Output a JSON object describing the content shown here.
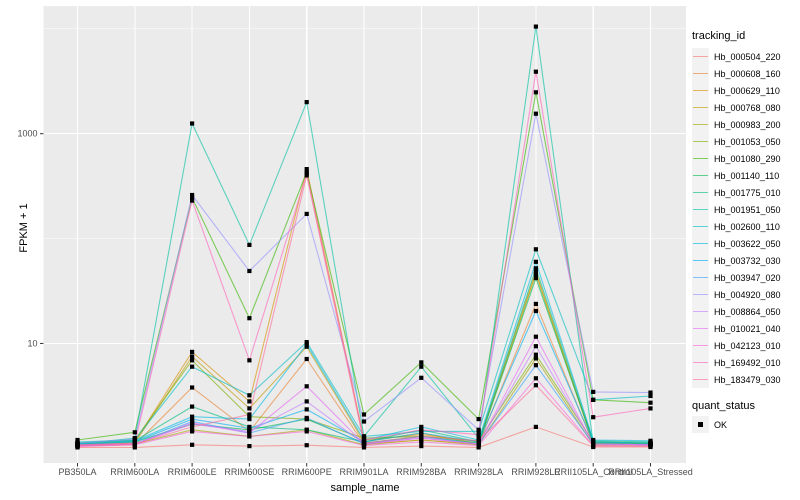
{
  "chart_data": {
    "type": "line",
    "title": "",
    "xlabel": "sample_name",
    "ylabel": "FPKM + 1",
    "y_scale": "log10",
    "ylim": [
      1,
      15000
    ],
    "grid": true,
    "legend_position": "right",
    "panel_bg": "#EBEBEB",
    "grid_color": "#FFFFFF",
    "tick_label_color": "#4D4D4D",
    "tick_mark_color": "#333333",
    "point_color": "#000000",
    "legend_key_bg": "#F2F2F2",
    "yticks": [
      {
        "value": 10,
        "label": "10"
      },
      {
        "value": 1000,
        "label": "1000"
      }
    ],
    "y_minor": [
      100,
      10000
    ],
    "categories": [
      "PB350LA",
      "RRIM600LA",
      "RRIM600LE",
      "RRIM600SE",
      "RRIM600PE",
      "RRIM901LA",
      "RRIM928BA",
      "RRIM928LA",
      "RRIM928LE",
      "RRII105LA_Control",
      "RRII105LA_Stressed"
    ],
    "legend": {
      "color_title": "tracking_id",
      "shape_title": "quant_status",
      "shape_items": [
        {
          "label": "OK"
        }
      ]
    },
    "series": [
      {
        "name": "Hb_000504_220",
        "color": "#F8766D",
        "values": [
          1.02,
          1.02,
          1.08,
          1.05,
          1.07,
          1.02,
          1.05,
          1.02,
          1.6,
          1.03,
          1.03
        ]
      },
      {
        "name": "Hb_000608_160",
        "color": "#EA8331",
        "values": [
          1.05,
          1.08,
          3.8,
          1.45,
          7.1,
          1.1,
          1.2,
          1.1,
          23.8,
          1.1,
          1.1
        ]
      },
      {
        "name": "Hb_000629_110",
        "color": "#D89000",
        "values": [
          1.1,
          1.15,
          8.3,
          2.8,
          460,
          1.2,
          1.35,
          1.15,
          48,
          1.12,
          1.1
        ]
      },
      {
        "name": "Hb_000768_080",
        "color": "#C09B00",
        "values": [
          1.08,
          1.12,
          7.5,
          2.4,
          9.3,
          1.15,
          1.4,
          1.1,
          46,
          1.12,
          1.1
        ]
      },
      {
        "name": "Hb_000983_200",
        "color": "#A3A500",
        "values": [
          1.06,
          1.1,
          1.5,
          1.3,
          1.5,
          1.08,
          1.2,
          1.08,
          7.2,
          1.08,
          1.08
        ]
      },
      {
        "name": "Hb_001053_050",
        "color": "#7CAE00",
        "values": [
          1.12,
          1.2,
          6.9,
          2.0,
          1.9,
          1.25,
          1.3,
          1.18,
          7.8,
          1.15,
          1.12
        ]
      },
      {
        "name": "Hb_001080_290",
        "color": "#39B600",
        "values": [
          1.2,
          1.42,
          245,
          17.4,
          430,
          2.1,
          6.6,
          1.9,
          2480,
          2.9,
          2.72
        ]
      },
      {
        "name": "Hb_001140_110",
        "color": "#00BB4E",
        "values": [
          1.1,
          1.15,
          1.7,
          1.5,
          1.9,
          1.12,
          1.3,
          1.12,
          42,
          1.15,
          1.12
        ]
      },
      {
        "name": "Hb_001775_010",
        "color": "#00BF7D",
        "values": [
          1.12,
          1.18,
          2.5,
          1.6,
          1.5,
          1.15,
          1.5,
          1.15,
          52,
          1.18,
          1.15
        ]
      },
      {
        "name": "Hb_001951_050",
        "color": "#00C1A3",
        "values": [
          1.1,
          1.25,
          1250,
          87,
          2000,
          1.3,
          6.0,
          1.25,
          10500,
          1.12,
          1.1
        ]
      },
      {
        "name": "Hb_002600_110",
        "color": "#00BFC4",
        "values": [
          1.15,
          1.2,
          6.0,
          3.2,
          10.3,
          1.3,
          1.45,
          1.45,
          79,
          2.9,
          3.15
        ]
      },
      {
        "name": "Hb_003622_050",
        "color": "#00BAE0",
        "values": [
          1.1,
          1.18,
          2.0,
          1.9,
          9.8,
          1.2,
          1.6,
          1.2,
          60,
          1.2,
          1.18
        ]
      },
      {
        "name": "Hb_003732_030",
        "color": "#00B0F6",
        "values": [
          1.08,
          1.15,
          1.9,
          1.55,
          2.35,
          1.15,
          1.4,
          1.15,
          20.4,
          1.15,
          1.12
        ]
      },
      {
        "name": "Hb_003947_020",
        "color": "#35A2FF",
        "values": [
          1.06,
          1.1,
          1.8,
          1.4,
          1.95,
          1.1,
          1.3,
          1.1,
          6.2,
          1.1,
          1.08
        ]
      },
      {
        "name": "Hb_004920_080",
        "color": "#9590FF",
        "values": [
          1.12,
          1.22,
          260,
          49,
          172,
          1.8,
          4.7,
          1.5,
          1550,
          3.45,
          3.4
        ]
      },
      {
        "name": "Hb_008864_050",
        "color": "#C77CFF",
        "values": [
          1.06,
          1.1,
          1.7,
          1.45,
          2.8,
          1.1,
          1.25,
          1.1,
          9.4,
          1.1,
          1.08
        ]
      },
      {
        "name": "Hb_010021_040",
        "color": "#E76BF3",
        "values": [
          1.05,
          1.1,
          1.75,
          1.4,
          3.9,
          1.1,
          1.25,
          1.1,
          11.6,
          1.1,
          1.08
        ]
      },
      {
        "name": "Hb_042123_010",
        "color": "#FA62DB",
        "values": [
          1.04,
          1.08,
          1.45,
          1.3,
          1.45,
          1.06,
          1.15,
          1.06,
          4.65,
          1.06,
          1.05
        ]
      },
      {
        "name": "Hb_169492_010",
        "color": "#FF62BC",
        "values": [
          1.08,
          1.12,
          230,
          6.9,
          415,
          1.2,
          1.5,
          1.35,
          3900,
          1.98,
          2.4
        ]
      },
      {
        "name": "Hb_183479_030",
        "color": "#FF6A98",
        "values": [
          1.06,
          1.1,
          1.6,
          2.1,
          400,
          1.12,
          1.3,
          1.18,
          4.0,
          1.05,
          1.05
        ]
      }
    ]
  }
}
